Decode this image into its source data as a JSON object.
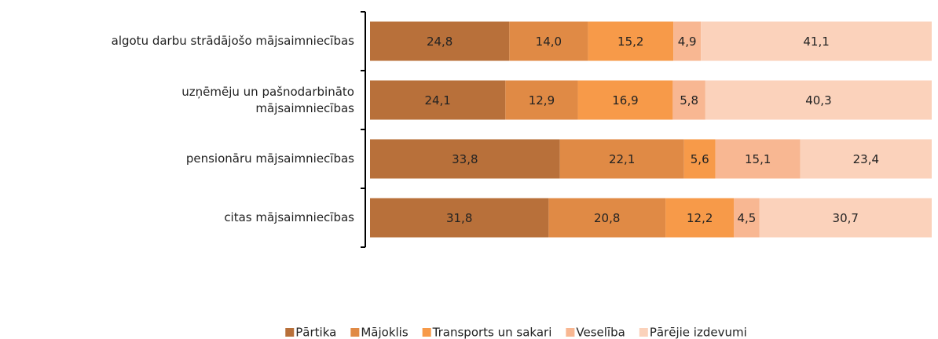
{
  "chart_data": {
    "type": "stacked_bar_horizontal",
    "categories": [
      "algotu darbu strādājošo mājsaimniecības",
      "uzņēmēju un pašnodarbināto\nmājsaimniecības",
      "pensionāru mājsaimniecības",
      "citas mājsaimniecības"
    ],
    "series": [
      {
        "name": "Pārtika",
        "color": "#b8703a",
        "values": [
          24.8,
          24.1,
          33.8,
          31.8
        ],
        "value_labels": [
          "24,8",
          "24,1",
          "33,8",
          "31,8"
        ]
      },
      {
        "name": "Mājoklis",
        "color": "#e08a45",
        "values": [
          14.0,
          12.9,
          22.1,
          20.8
        ],
        "value_labels": [
          "14,0",
          "12,9",
          "22,1",
          "20,8"
        ]
      },
      {
        "name": "Transports un sakari",
        "color": "#f79a49",
        "values": [
          15.2,
          16.9,
          5.6,
          12.2
        ],
        "value_labels": [
          "15,2",
          "16,9",
          "5,6",
          "12,2"
        ]
      },
      {
        "name": "Veselība",
        "color": "#f8b792",
        "values": [
          4.9,
          5.8,
          15.1,
          4.5
        ],
        "value_labels": [
          "4,9",
          "5,8",
          "15,1",
          "4,5"
        ]
      },
      {
        "name": "Pārējie izdevumi",
        "color": "#fbd2bb",
        "values": [
          41.1,
          40.3,
          23.4,
          30.7
        ],
        "value_labels": [
          "41,1",
          "40,3",
          "23,4",
          "30,7"
        ]
      }
    ],
    "xlim": [
      0,
      100
    ],
    "legend": "bottom"
  }
}
